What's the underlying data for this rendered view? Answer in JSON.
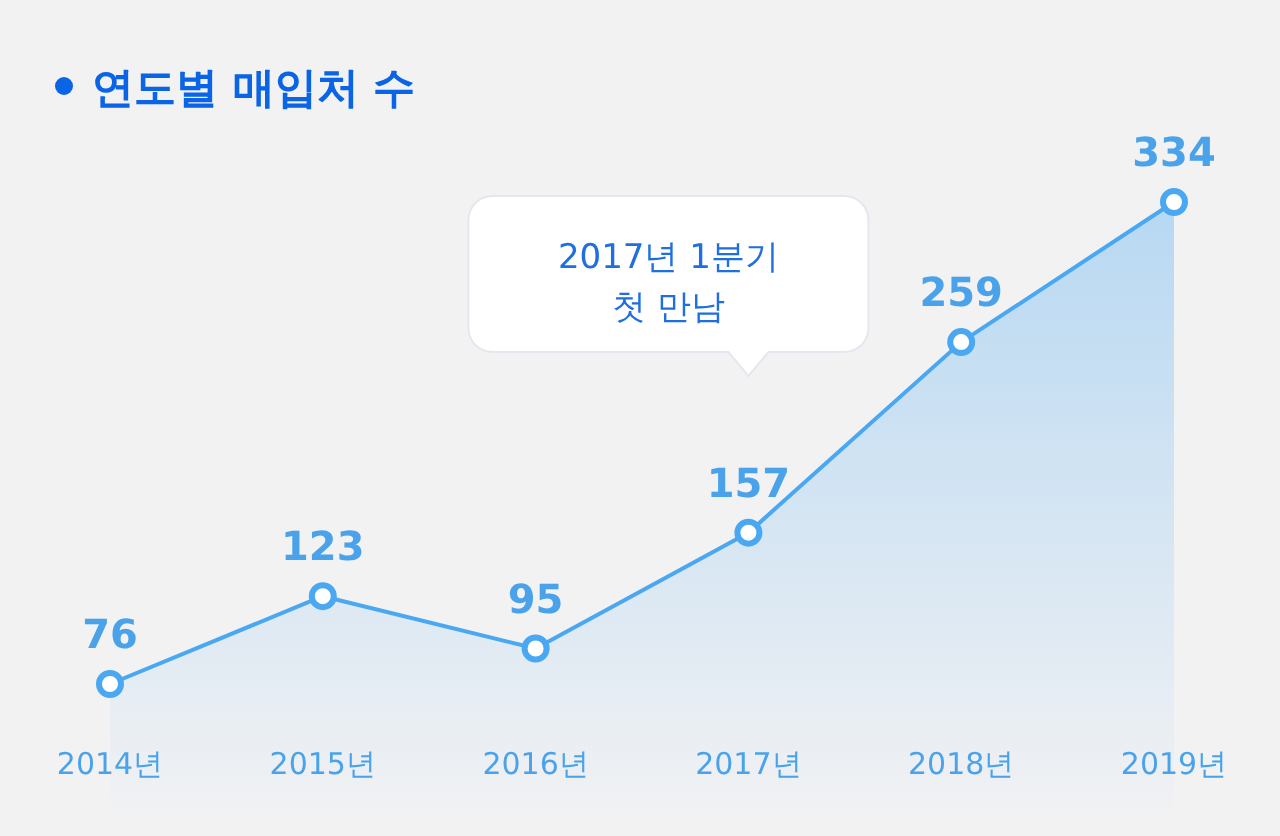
{
  "chart_data": {
    "type": "area",
    "title": "연도별 매입처 수",
    "categories": [
      "2014년",
      "2015년",
      "2016년",
      "2017년",
      "2018년",
      "2019년"
    ],
    "series": [
      {
        "color": "#4aa8f2",
        "values": [
          76,
          123,
          95,
          157,
          259,
          334
        ]
      }
    ],
    "data_labels": true,
    "marker": "circle",
    "annotations": [
      "2017년 1분기\n첫 만남"
    ]
  }
}
